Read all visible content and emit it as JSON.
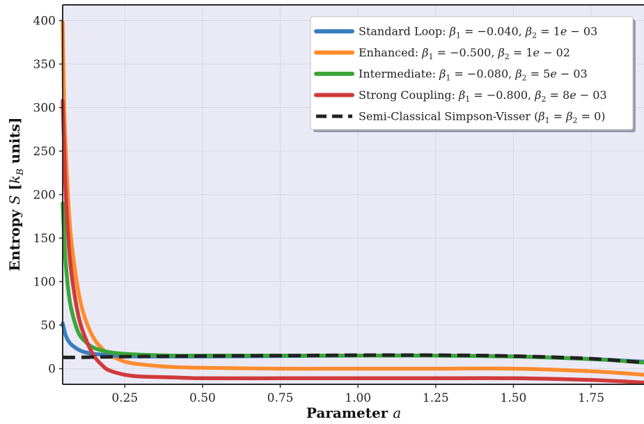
{
  "chart_data": {
    "type": "line",
    "title": "",
    "xlabel": "Parameter a",
    "xlabel_parts": {
      "bold": "Parameter ",
      "italic": "a"
    },
    "ylabel": "Entropy S [k_B units]",
    "ylabel_parts": {
      "prefix": "Entropy ",
      "symbol": "S",
      "mid": " [",
      "kb": "k",
      "kb_sub": "B",
      "suffix": " units]"
    },
    "xlim": [
      0.05,
      1.92
    ],
    "ylim": [
      -18,
      418
    ],
    "x_ticks": [
      0.25,
      0.5,
      0.75,
      1.0,
      1.25,
      1.5,
      1.75
    ],
    "x_tick_labels": [
      "0.25",
      "0.50",
      "0.75",
      "1.00",
      "1.25",
      "1.50",
      "1.75"
    ],
    "y_ticks": [
      0,
      50,
      100,
      150,
      200,
      250,
      300,
      350,
      400
    ],
    "y_tick_labels": [
      "0",
      "50",
      "100",
      "150",
      "200",
      "250",
      "300",
      "350",
      "400"
    ],
    "grid": true,
    "legend_position": "top-right",
    "background_color": "#eaeaf7",
    "series": [
      {
        "name": "Standard Loop: β₁ = −0.040, β₂ = 1e−03",
        "color": "#3a7ebf",
        "dashed": false,
        "x": [
          0.05,
          0.06,
          0.07,
          0.08,
          0.1,
          0.12,
          0.15,
          0.2,
          0.25,
          0.3,
          0.4,
          0.5,
          0.75,
          1.0,
          1.25,
          1.5,
          1.75,
          1.92
        ],
        "y": [
          52,
          38,
          31,
          27,
          22,
          19,
          17,
          15.5,
          14.5,
          14,
          14,
          14,
          14.5,
          15,
          15,
          14,
          11,
          8
        ]
      },
      {
        "name": "Enhanced: β₁ = −0.500, β₂ = 1e−02",
        "color": "#ff8c2e",
        "dashed": false,
        "x": [
          0.05,
          0.055,
          0.06,
          0.07,
          0.08,
          0.1,
          0.12,
          0.15,
          0.18,
          0.2,
          0.25,
          0.3,
          0.4,
          0.5,
          0.75,
          1.0,
          1.25,
          1.5,
          1.75,
          1.92
        ],
        "y": [
          398,
          300,
          250,
          180,
          140,
          90,
          60,
          35,
          22,
          16,
          8,
          5,
          2,
          1,
          0,
          0,
          0,
          0,
          -3,
          -7
        ]
      },
      {
        "name": "Intermediate: β₁ = −0.080, β₂ = 5e−03",
        "color": "#3aa639",
        "dashed": false,
        "x": [
          0.05,
          0.055,
          0.06,
          0.07,
          0.08,
          0.1,
          0.12,
          0.15,
          0.2,
          0.25,
          0.3,
          0.4,
          0.5,
          0.75,
          1.0,
          1.25,
          1.5,
          1.75,
          1.92
        ],
        "y": [
          190,
          150,
          120,
          85,
          65,
          42,
          32,
          24,
          19,
          17,
          16,
          15,
          15,
          15,
          15,
          15,
          14,
          11,
          7
        ]
      },
      {
        "name": "Strong Coupling: β₁ = −0.800, β₂ = 8e−03",
        "color": "#d03a3a",
        "dashed": false,
        "x": [
          0.05,
          0.055,
          0.06,
          0.07,
          0.08,
          0.1,
          0.12,
          0.15,
          0.18,
          0.2,
          0.25,
          0.3,
          0.4,
          0.5,
          0.75,
          1.0,
          1.25,
          1.5,
          1.75,
          1.92
        ],
        "y": [
          308,
          250,
          200,
          140,
          105,
          62,
          38,
          15,
          3,
          -2,
          -7,
          -9,
          -10,
          -11,
          -11,
          -11,
          -11,
          -11,
          -13,
          -16
        ]
      },
      {
        "name": "Semi-Classical Simpson-Visser (β₁ = β₂ = 0)",
        "color": "#222222",
        "dashed": true,
        "x": [
          0.05,
          0.1,
          0.2,
          0.3,
          0.5,
          0.75,
          1.0,
          1.25,
          1.5,
          1.75,
          1.92
        ],
        "y": [
          13,
          13,
          13.5,
          14,
          14.5,
          15,
          15.5,
          15.5,
          14.5,
          11.5,
          7
        ]
      }
    ],
    "legend_parts": [
      [
        [
          "t",
          "Standard Loop: "
        ],
        [
          "i",
          "β"
        ],
        [
          "s",
          "1"
        ],
        [
          "t",
          " = −0.040, "
        ],
        [
          "i",
          "β"
        ],
        [
          "s",
          "2"
        ],
        [
          "t",
          " = 1"
        ],
        [
          "i",
          "e"
        ],
        [
          "t",
          " − 03"
        ]
      ],
      [
        [
          "t",
          "Enhanced: "
        ],
        [
          "i",
          "β"
        ],
        [
          "s",
          "1"
        ],
        [
          "t",
          " = −0.500, "
        ],
        [
          "i",
          "β"
        ],
        [
          "s",
          "2"
        ],
        [
          "t",
          " = 1"
        ],
        [
          "i",
          "e"
        ],
        [
          "t",
          " − 02"
        ]
      ],
      [
        [
          "t",
          "Intermediate: "
        ],
        [
          "i",
          "β"
        ],
        [
          "s",
          "1"
        ],
        [
          "t",
          " = −0.080, "
        ],
        [
          "i",
          "β"
        ],
        [
          "s",
          "2"
        ],
        [
          "t",
          " = 5"
        ],
        [
          "i",
          "e"
        ],
        [
          "t",
          " − 03"
        ]
      ],
      [
        [
          "t",
          "Strong Coupling: "
        ],
        [
          "i",
          "β"
        ],
        [
          "s",
          "1"
        ],
        [
          "t",
          " = −0.800, "
        ],
        [
          "i",
          "β"
        ],
        [
          "s",
          "2"
        ],
        [
          "t",
          " = 8"
        ],
        [
          "i",
          "e"
        ],
        [
          "t",
          " − 03"
        ]
      ],
      [
        [
          "t",
          "Semi-Classical Simpson-Visser ("
        ],
        [
          "i",
          "β"
        ],
        [
          "s",
          "1"
        ],
        [
          "t",
          " = "
        ],
        [
          "i",
          "β"
        ],
        [
          "s",
          "2"
        ],
        [
          "t",
          " = 0)"
        ]
      ]
    ]
  }
}
